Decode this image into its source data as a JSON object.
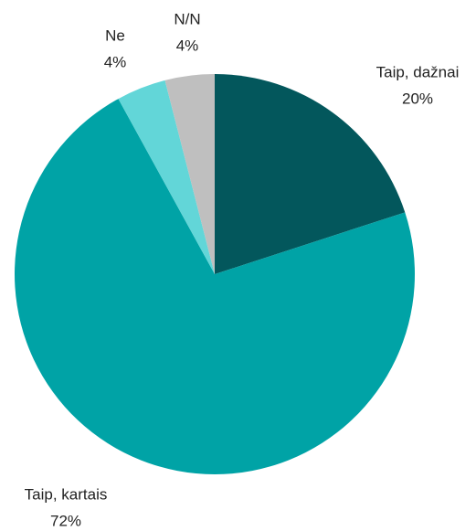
{
  "chart_data": {
    "type": "pie",
    "categories": [
      "Taip, dažnai",
      "Taip, kartais",
      "Ne",
      "N/N"
    ],
    "values": [
      20,
      72,
      4,
      4
    ],
    "value_labels": [
      "20%",
      "72%",
      "4%",
      "4%"
    ],
    "colors": [
      "#03575c",
      "#00a3a6",
      "#62d6d8",
      "#bfbfbf"
    ]
  }
}
